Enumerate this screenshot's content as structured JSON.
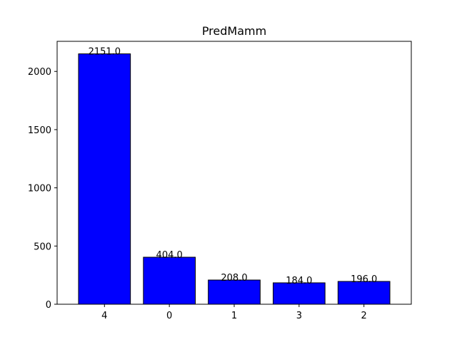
{
  "chart_data": {
    "type": "bar",
    "title": "PredMamm",
    "xlabel": "",
    "ylabel": "",
    "categories": [
      "4",
      "0",
      "1",
      "3",
      "2"
    ],
    "values": [
      2151.0,
      404.0,
      208.0,
      184.0,
      196.0
    ],
    "data_labels": [
      "2151.0",
      "404.0",
      "208.0",
      "184.0",
      "196.0"
    ],
    "ylim": [
      0,
      2258.55
    ],
    "yticks": [
      0,
      500,
      1000,
      1500,
      2000
    ],
    "bar_color": "#0000ff",
    "bar_edge_color": "#000000",
    "grid": false,
    "legend": "none"
  }
}
